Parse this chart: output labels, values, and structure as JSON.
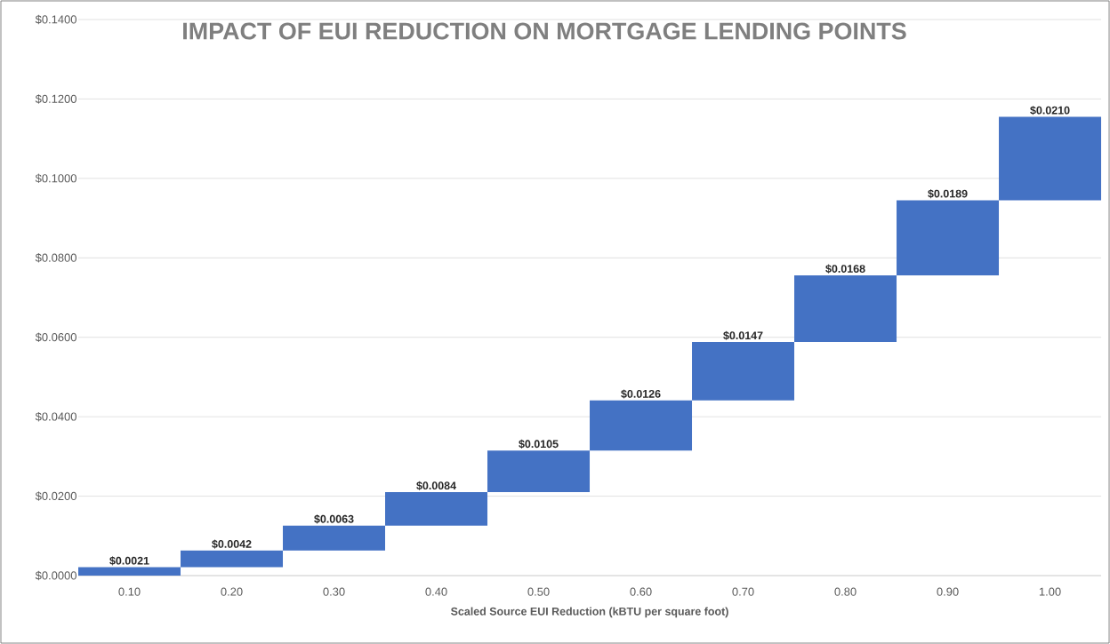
{
  "chart_data": {
    "type": "bar",
    "title": "IMPACT OF EUI REDUCTION ON MORTGAGE LENDING POINTS",
    "xlabel": "Scaled Source EUI Reduction (kBTU per square foot)",
    "categories": [
      "0.10",
      "0.20",
      "0.30",
      "0.40",
      "0.50",
      "0.60",
      "0.70",
      "0.80",
      "0.90",
      "1.00"
    ],
    "values": [
      0.0021,
      0.0042,
      0.0063,
      0.0084,
      0.0105,
      0.0126,
      0.0147,
      0.0168,
      0.0189,
      0.021
    ],
    "base": [
      0,
      0.0021,
      0.0063,
      0.0126,
      0.021,
      0.0315,
      0.0441,
      0.0588,
      0.0756,
      0.0945
    ],
    "value_labels": [
      "$0.0021",
      "$0.0042",
      "$0.0063",
      "$0.0084",
      "$0.0105",
      "$0.0126",
      "$0.0147",
      "$0.0168",
      "$0.0189",
      "$0.0210"
    ],
    "color": "#4472c4",
    "ylim": [
      0,
      0.14
    ],
    "yticks": [
      {
        "value": 0,
        "label": "$0.0000"
      },
      {
        "value": 0.02,
        "label": "$0.0200"
      },
      {
        "value": 0.04,
        "label": "$0.0400"
      },
      {
        "value": 0.06,
        "label": "$0.0600"
      },
      {
        "value": 0.08,
        "label": "$0.0800"
      },
      {
        "value": 0.1,
        "label": "$0.1000"
      },
      {
        "value": 0.12,
        "label": "$0.1200"
      },
      {
        "value": 0.14,
        "label": "$0.1400"
      }
    ],
    "grid": "y"
  }
}
